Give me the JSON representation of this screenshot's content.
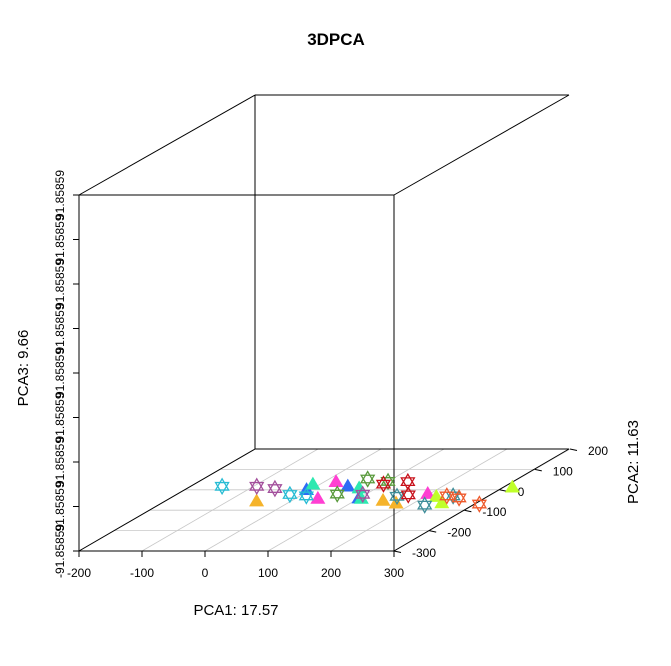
{
  "chart_data": {
    "type": "scatter",
    "title": "3DPCA",
    "xlabel": "PCA1:  17.57",
    "ylabel": "PCA2:  11.63",
    "zlabel": "PCA3:  9.66",
    "x_ticks": [
      "-200",
      "-100",
      "0",
      "100",
      "200",
      "300"
    ],
    "y_ticks": [
      "-300",
      "-200",
      "-100",
      "0",
      "100",
      "200"
    ],
    "z_ticks": [
      "-91.85859",
      "91.85859",
      "91.85859",
      "91.85859",
      "91.85859",
      "91.85859",
      "91.85859",
      "91.85859",
      "91.85859"
    ],
    "xlim": [
      -200,
      300
    ],
    "ylim": [
      -300,
      200
    ],
    "grid": true,
    "marker_types": [
      "filled triangle",
      "hexagram (star of David)"
    ],
    "series": [
      {
        "color": "#2e6bf5",
        "marker": "triangle",
        "points": [
          [
            -7,
            1
          ],
          [
            49,
            18
          ],
          [
            99,
            -40
          ]
        ]
      },
      {
        "color": "#ff3fd2",
        "marker": "triangle",
        "points": [
          [
            18,
            40
          ],
          [
            35,
            -42
          ],
          [
            196,
            -18
          ]
        ]
      },
      {
        "color": "#2de8b0",
        "marker": "triangle",
        "points": [
          [
            -12,
            28
          ],
          [
            72,
            9
          ],
          [
            104,
            -42
          ]
        ]
      },
      {
        "color": "#c0ff2a",
        "marker": "triangle",
        "points": [
          [
            218,
            -33
          ],
          [
            244,
            -64
          ],
          [
            313,
            13
          ]
        ]
      },
      {
        "color": "#f5b32a",
        "marker": "triangle",
        "points": [
          [
            -55,
            -55
          ],
          [
            144,
            -52
          ],
          [
            172,
            -65
          ]
        ]
      },
      {
        "color": "#a3509c",
        "marker": "hexagram",
        "points": [
          [
            -95,
            17
          ],
          [
            -60,
            6
          ],
          [
            95,
            -22
          ]
        ]
      },
      {
        "color": "#28bcd4",
        "marker": "hexagram",
        "points": [
          [
            -150,
            17
          ],
          [
            -20,
            -23
          ],
          [
            10,
            -30
          ]
        ]
      },
      {
        "color": "#5a9a3c",
        "marker": "hexagram",
        "points": [
          [
            54,
            -21
          ],
          [
            61,
            53
          ],
          [
            100,
            41
          ]
        ]
      },
      {
        "color": "#3f8e9a",
        "marker": "hexagram",
        "points": [
          [
            155,
            -32
          ],
          [
            223,
            -75
          ],
          [
            243,
            -30
          ]
        ]
      },
      {
        "color": "#c8111a",
        "marker": "hexagram",
        "points": [
          [
            100,
            28
          ],
          [
            132,
            40
          ],
          [
            169,
            -25
          ]
        ]
      },
      {
        "color": "#ee5a2c",
        "marker": "hexagram",
        "points": [
          [
            233,
            -30
          ],
          [
            258,
            -40
          ],
          [
            307,
            -70
          ]
        ]
      }
    ]
  }
}
